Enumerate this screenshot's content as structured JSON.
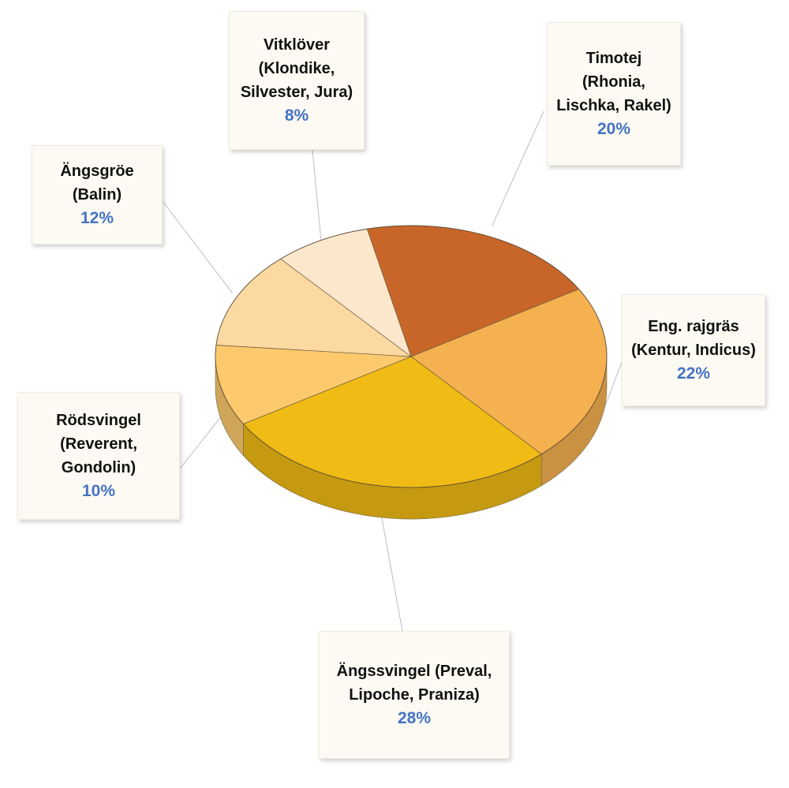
{
  "chart_data": {
    "type": "pie",
    "style": "3d",
    "slices": [
      {
        "label": "Timotej\n(Rhonia,\nLischka, Rakel)",
        "value": 20,
        "value_label": "20%",
        "color": "#c8662a"
      },
      {
        "label": "Eng. rajgräs\n(Kentur, Indicus)",
        "value": 22,
        "value_label": "22%",
        "color": "#f5b14f"
      },
      {
        "label": "Ängssvingel (Preval,\nLipoche, Praniza)",
        "value": 28,
        "value_label": "28%",
        "color": "#f0bb14"
      },
      {
        "label": "Rödsvingel\n(Reverent,\nGondolin)",
        "value": 10,
        "value_label": "10%",
        "color": "#fcca6c"
      },
      {
        "label": "Ängsgröe\n(Balin)",
        "value": 12,
        "value_label": "12%",
        "color": "#fcd9a0"
      },
      {
        "label": "Vitklöver\n(Klondike,\nSilvester, Jura)",
        "value": 8,
        "value_label": "8%",
        "color": "#fde7cc"
      }
    ]
  }
}
